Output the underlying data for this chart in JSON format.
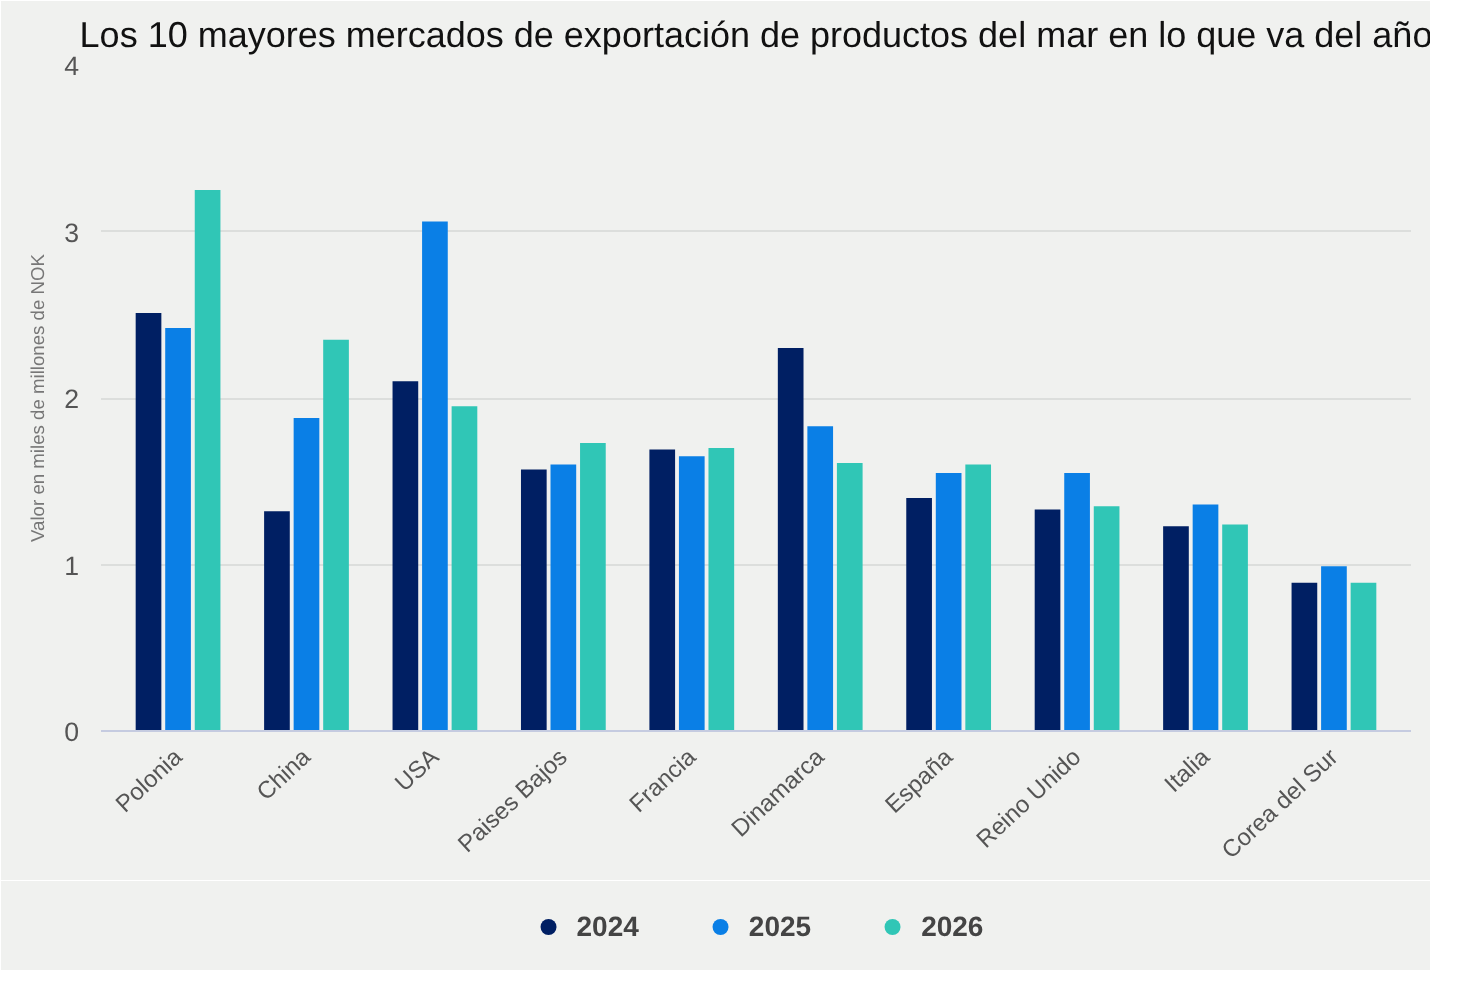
{
  "chart_data": {
    "type": "bar",
    "title": "Los 10 mayores mercados de exportación de productos del mar en lo que va del año",
    "ylabel": "Valor en miles de millones de NOK",
    "categories": [
      "Polonia",
      "China",
      "USA",
      "Paises Bajos",
      "Francia",
      "Dinamarca",
      "España",
      "Reino Unido",
      "Italia",
      "Corea del Sur"
    ],
    "series": [
      {
        "name": "2024",
        "color": "#001f63",
        "values": [
          2.51,
          1.32,
          2.1,
          1.57,
          1.69,
          2.3,
          1.4,
          1.33,
          1.23,
          0.89
        ]
      },
      {
        "name": "2025",
        "color": "#0a7fe6",
        "values": [
          2.42,
          1.88,
          3.06,
          1.6,
          1.65,
          1.83,
          1.55,
          1.55,
          1.36,
          0.99
        ]
      },
      {
        "name": "2026",
        "color": "#30c6b6",
        "values": [
          3.25,
          2.35,
          1.95,
          1.73,
          1.7,
          1.61,
          1.6,
          1.35,
          1.24,
          0.89
        ]
      }
    ],
    "ylim": [
      0,
      4
    ],
    "yticks": [
      0,
      1,
      2,
      3,
      4
    ],
    "grid": "y",
    "legend": "bottom"
  }
}
